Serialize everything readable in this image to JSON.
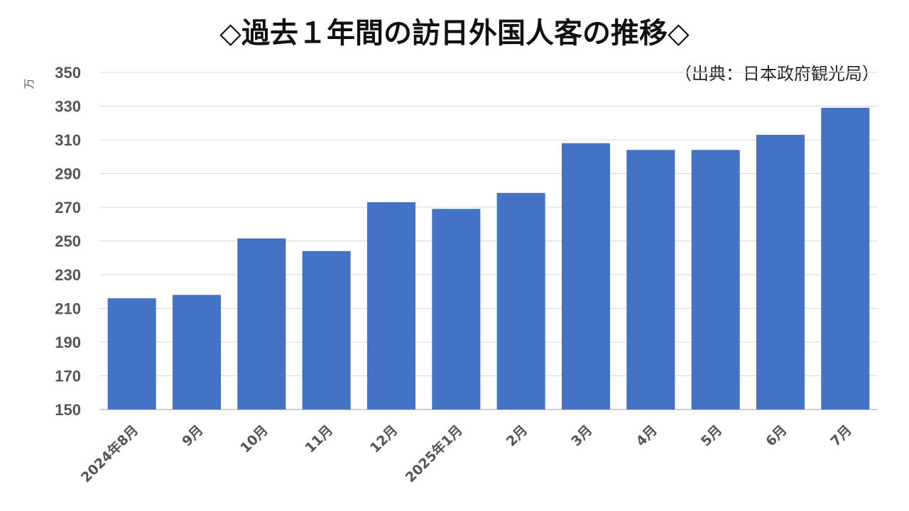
{
  "chart_data": {
    "type": "bar",
    "title": "◇過去１年間の訪日外国人客の推移◇",
    "source": "（出典：日本政府観光局）",
    "ylabel": "万",
    "categories": [
      "2024年8月",
      "9月",
      "10月",
      "11月",
      "12月",
      "2025年1月",
      "2月",
      "3月",
      "4月",
      "5月",
      "6月",
      "7月"
    ],
    "values": [
      216,
      218,
      251.5,
      244,
      273,
      269,
      278.5,
      308,
      304,
      304,
      313,
      329
    ],
    "ylim": [
      150,
      350
    ],
    "yticks": [
      "150",
      "170",
      "190",
      "210",
      "230",
      "250",
      "270",
      "290",
      "310",
      "330",
      "350"
    ],
    "grid": true,
    "legend": "none",
    "colors": {
      "bar": "#4472C4",
      "grid": "#D9D9D9",
      "axis": "#BFBFBF"
    }
  }
}
